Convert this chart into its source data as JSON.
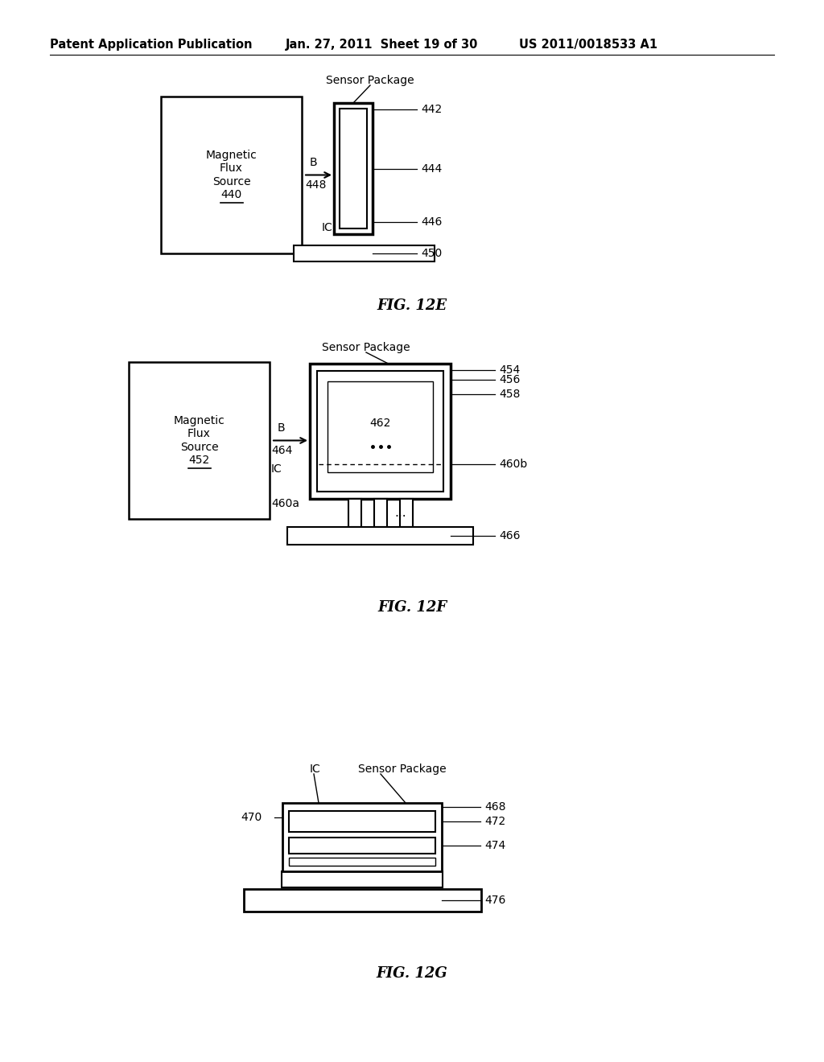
{
  "bg_color": "#ffffff",
  "header_left": "Patent Application Publication",
  "header_mid": "Jan. 27, 2011  Sheet 19 of 30",
  "header_right": "US 2011/0018533 A1",
  "fig12e_title": "FIG. 12E",
  "fig12f_title": "FIG. 12F",
  "fig12g_title": "FIG. 12G"
}
